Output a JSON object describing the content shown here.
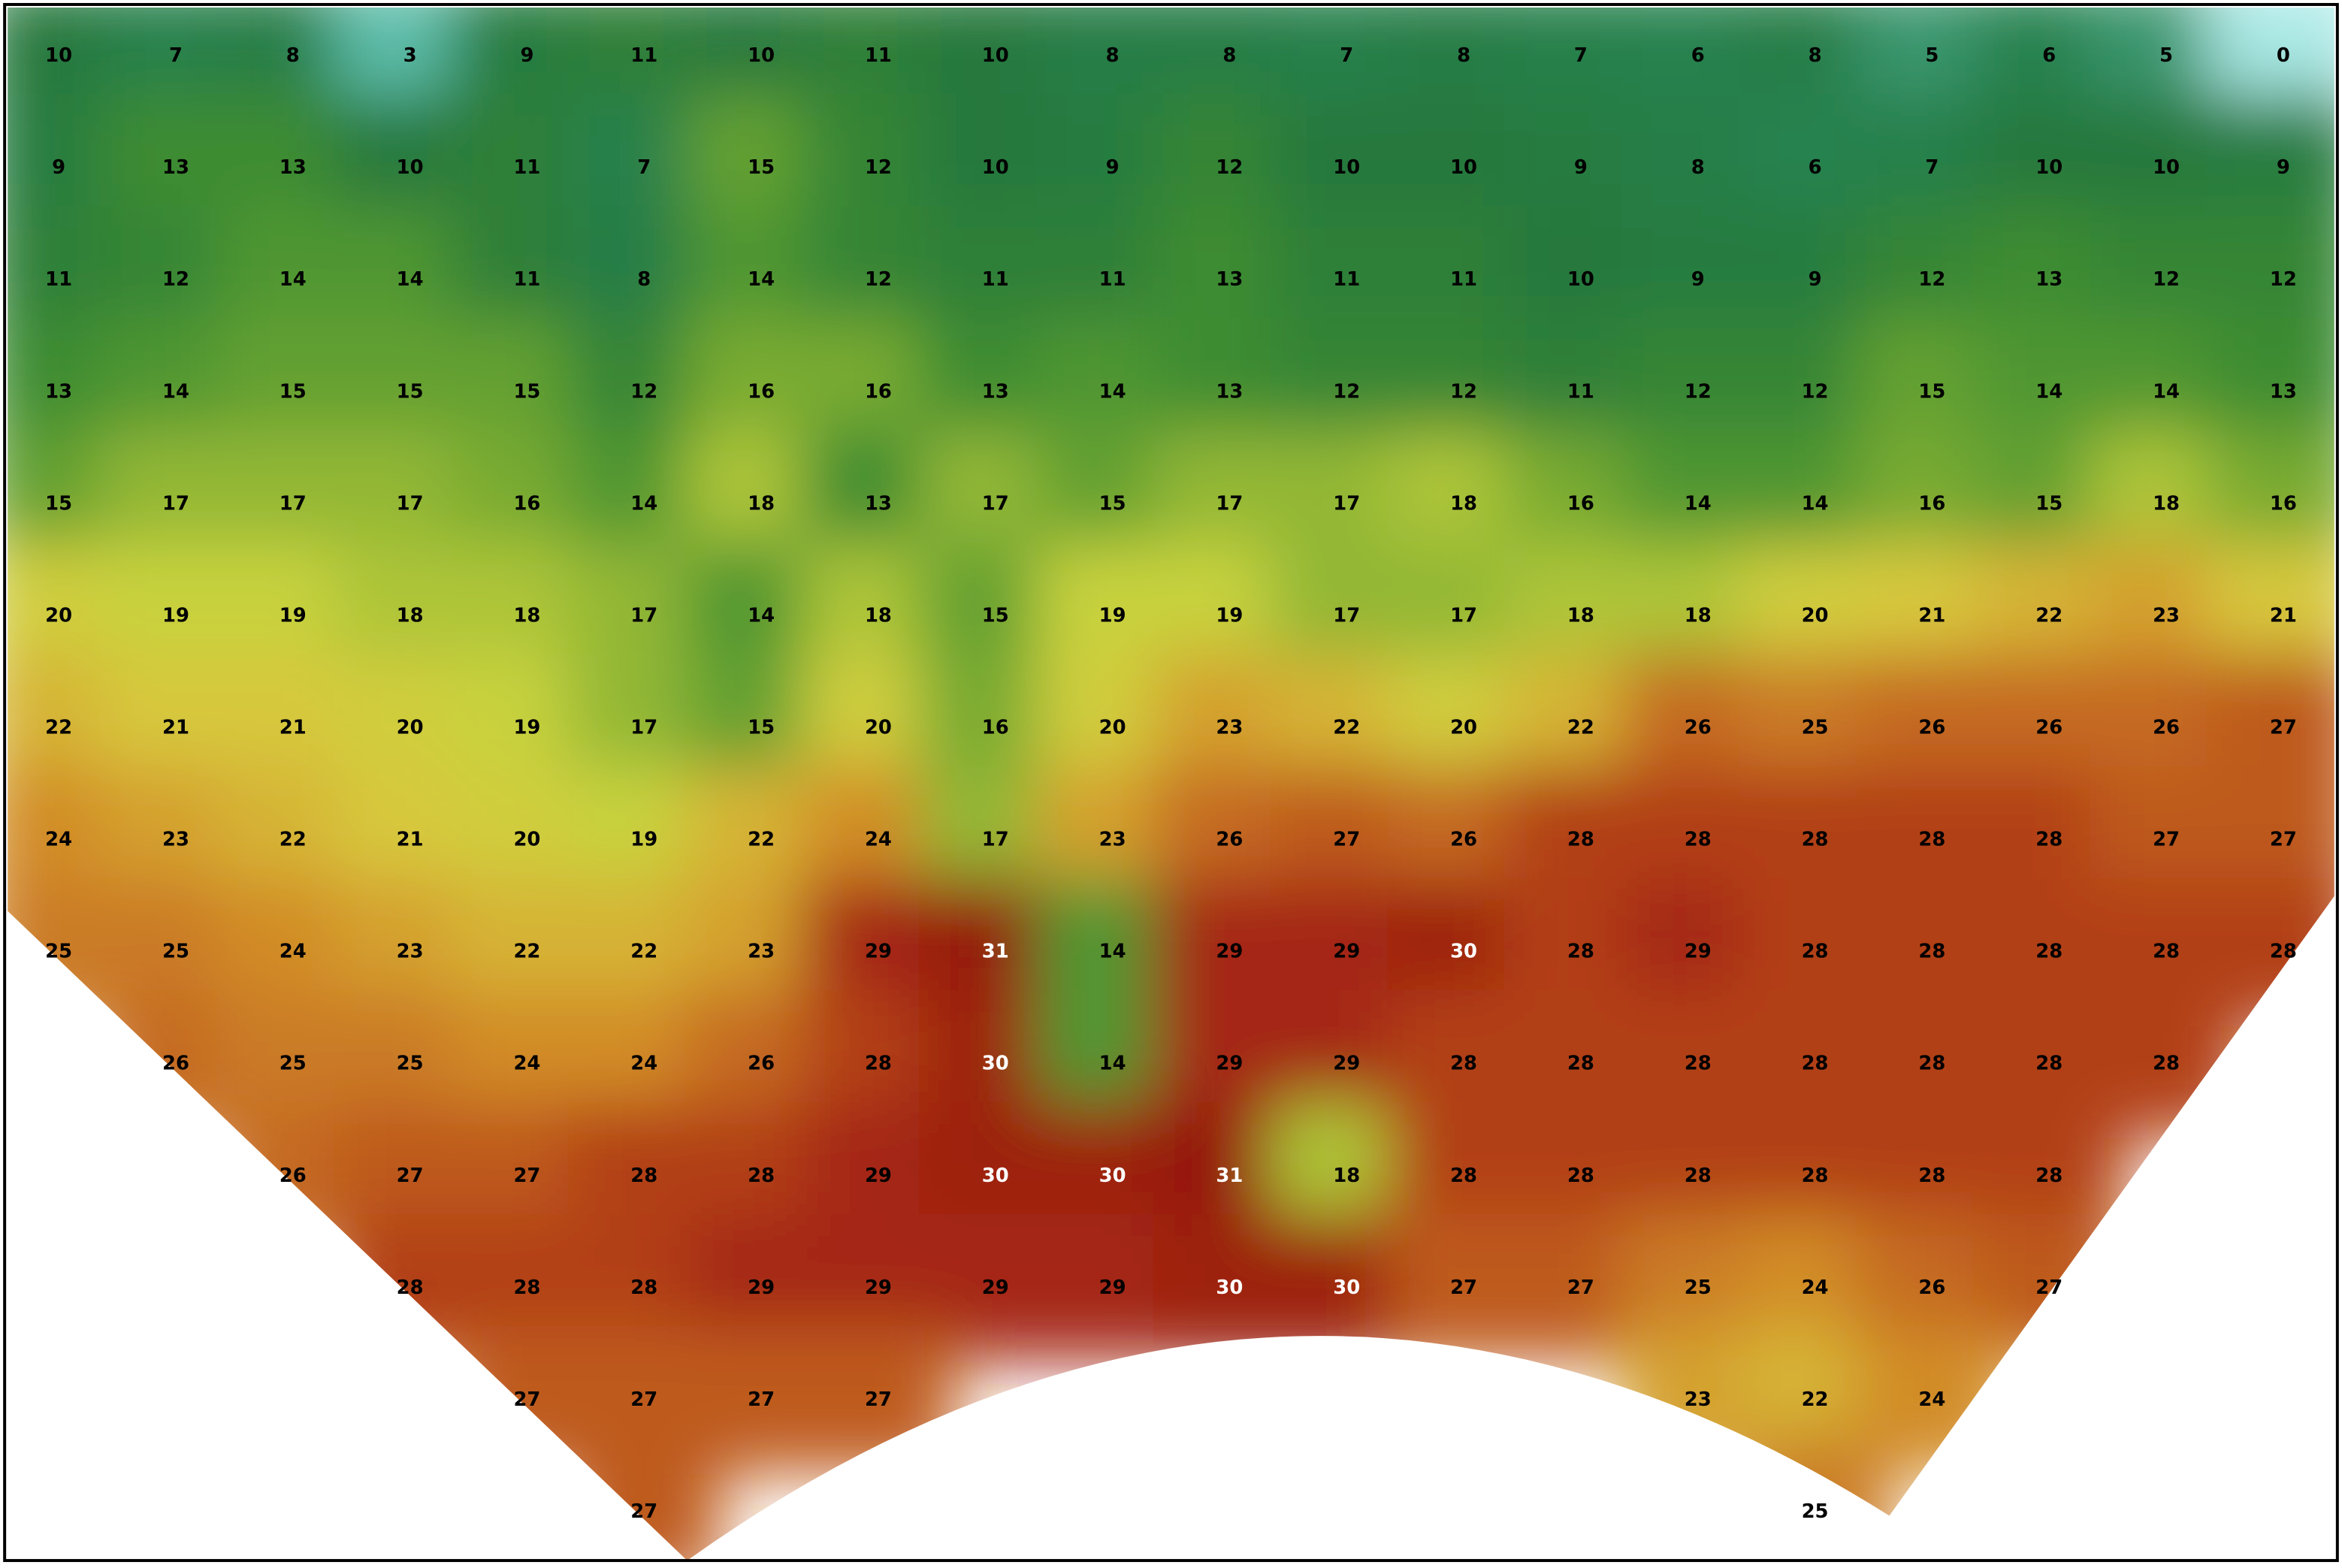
{
  "map": {
    "rows": [
      [
        10,
        7,
        8,
        3,
        9,
        11,
        10,
        11,
        10,
        8,
        8,
        7,
        8,
        7,
        6,
        8,
        5,
        6,
        5,
        0
      ],
      [
        9,
        13,
        13,
        10,
        11,
        7,
        15,
        12,
        10,
        9,
        12,
        10,
        10,
        9,
        8,
        6,
        7,
        10,
        10,
        9
      ],
      [
        11,
        12,
        14,
        14,
        11,
        8,
        14,
        12,
        11,
        11,
        13,
        11,
        11,
        10,
        9,
        9,
        12,
        13,
        12,
        12
      ],
      [
        13,
        14,
        15,
        15,
        15,
        12,
        16,
        16,
        13,
        14,
        13,
        12,
        12,
        11,
        12,
        12,
        15,
        14,
        14,
        13
      ],
      [
        15,
        17,
        17,
        17,
        16,
        14,
        18,
        13,
        17,
        15,
        17,
        17,
        18,
        16,
        14,
        14,
        16,
        15,
        18,
        16
      ],
      [
        20,
        19,
        19,
        18,
        18,
        17,
        14,
        18,
        15,
        19,
        19,
        17,
        17,
        18,
        18,
        20,
        21,
        22,
        23,
        21
      ],
      [
        22,
        21,
        21,
        20,
        19,
        17,
        15,
        20,
        16,
        20,
        23,
        22,
        20,
        22,
        26,
        25,
        26,
        26,
        26,
        27
      ],
      [
        24,
        23,
        22,
        21,
        20,
        19,
        22,
        24,
        17,
        23,
        26,
        27,
        26,
        28,
        28,
        28,
        28,
        28,
        27,
        27
      ],
      [
        25,
        25,
        24,
        23,
        22,
        22,
        23,
        29,
        31,
        14,
        29,
        29,
        30,
        28,
        29,
        28,
        28,
        28,
        28,
        28
      ],
      [
        null,
        26,
        25,
        25,
        24,
        24,
        26,
        28,
        30,
        14,
        29,
        29,
        28,
        28,
        28,
        28,
        28,
        28,
        28,
        null
      ],
      [
        null,
        null,
        26,
        27,
        27,
        28,
        28,
        29,
        30,
        30,
        31,
        18,
        28,
        28,
        28,
        28,
        28,
        28,
        null,
        null
      ],
      [
        null,
        null,
        null,
        28,
        28,
        28,
        29,
        29,
        29,
        29,
        30,
        30,
        27,
        27,
        25,
        24,
        26,
        27,
        null,
        null
      ],
      [
        null,
        null,
        null,
        null,
        27,
        27,
        27,
        27,
        null,
        null,
        null,
        null,
        null,
        null,
        23,
        22,
        24,
        null,
        null,
        null
      ],
      [
        null,
        null,
        null,
        null,
        null,
        27,
        null,
        null,
        null,
        null,
        null,
        null,
        null,
        null,
        null,
        25,
        null,
        null,
        null,
        null
      ]
    ]
  }
}
